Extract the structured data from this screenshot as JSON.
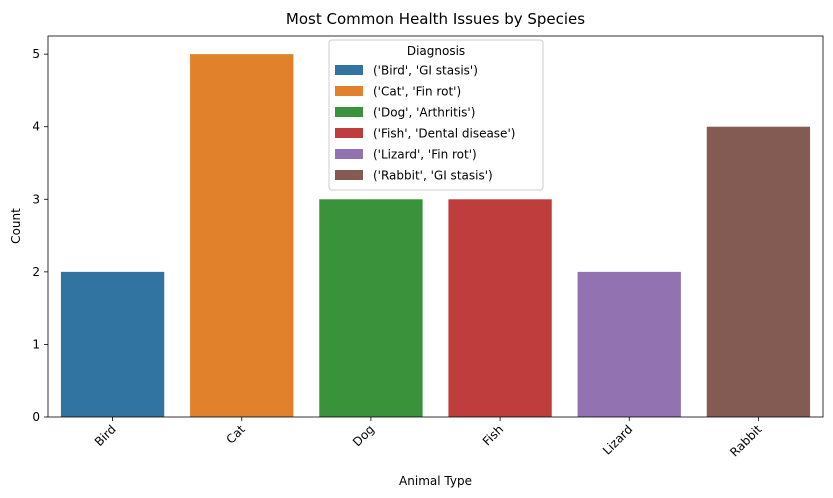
{
  "chart_data": {
    "type": "bar",
    "title": "Most Common Health Issues by Species",
    "xlabel": "Animal Type",
    "ylabel": "Count",
    "categories": [
      "Bird",
      "Cat",
      "Dog",
      "Fish",
      "Lizard",
      "Rabbit"
    ],
    "values": [
      2,
      5,
      3,
      3,
      2,
      4
    ],
    "ylim": [
      0,
      5.25
    ],
    "yticks": [
      0,
      1,
      2,
      3,
      4,
      5
    ],
    "grid": false,
    "legend": {
      "title": "Diagnosis",
      "placement": "top-center",
      "entries": [
        "('Bird', 'GI stasis')",
        "('Cat', 'Fin rot')",
        "('Dog', 'Arthritis')",
        "('Fish', 'Dental disease')",
        "('Lizard', 'Fin rot')",
        "('Rabbit', 'GI stasis')"
      ]
    },
    "colors": [
      "#3274a1",
      "#e1812c",
      "#3a923a",
      "#c03d3e",
      "#9372b2",
      "#845b53"
    ]
  }
}
